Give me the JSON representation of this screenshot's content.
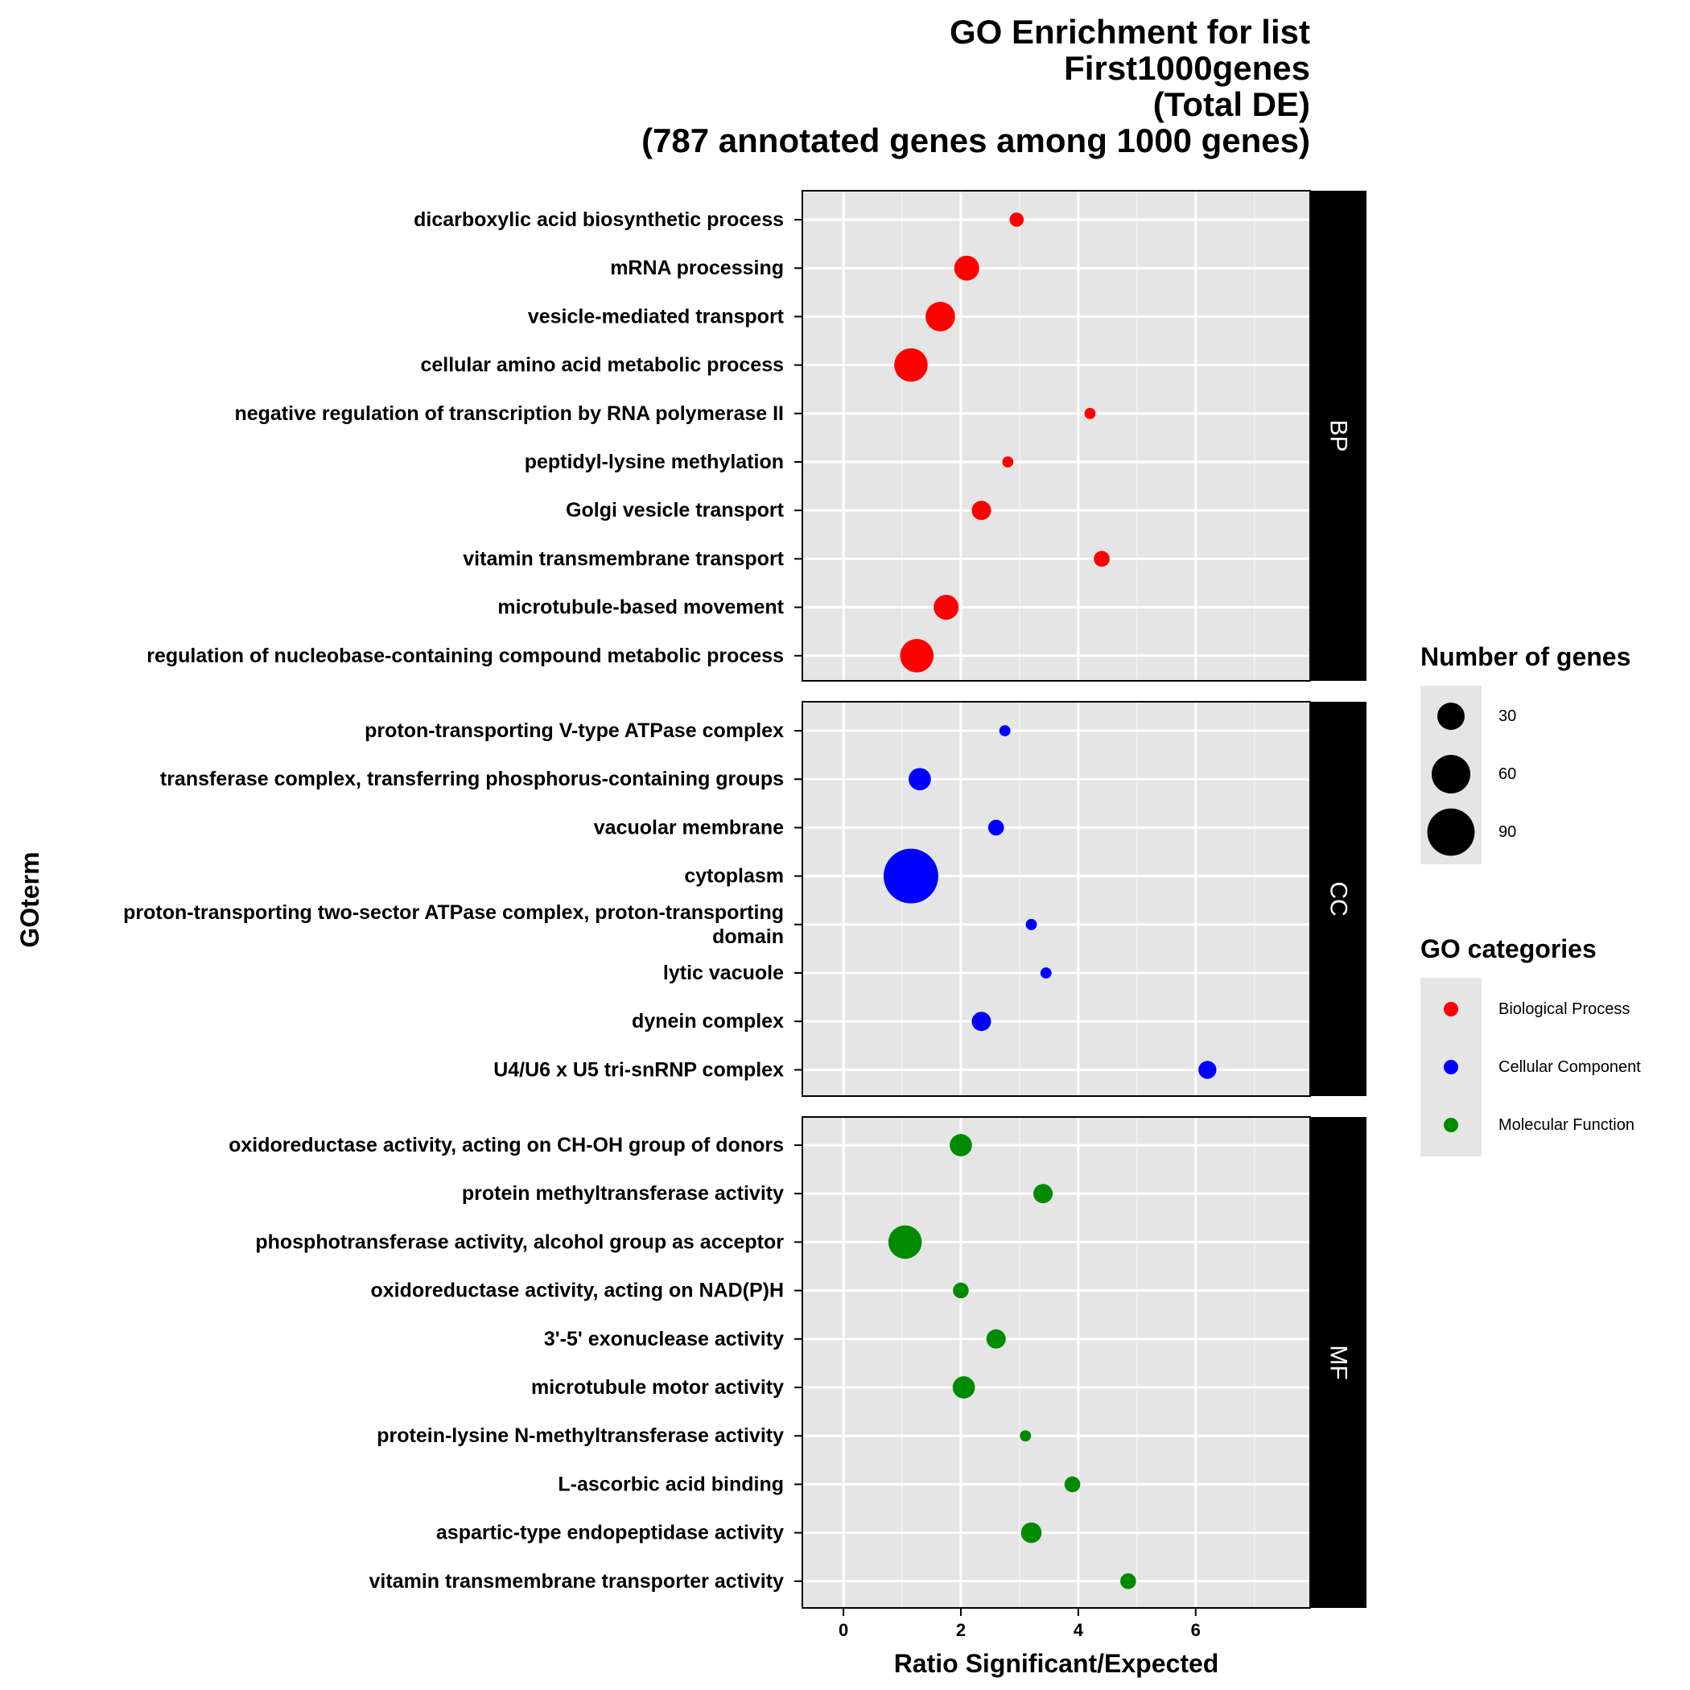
{
  "chart_data": {
    "type": "scatter",
    "title": [
      "GO Enrichment for list",
      "First1000genes",
      "(Total DE)",
      "(787 annotated genes among 1000 genes)"
    ],
    "xlabel": "Ratio Significant/Expected",
    "ylabel": "GOterm",
    "xlim": [
      -0.7,
      7.95
    ],
    "x_ticks": [
      0,
      2,
      4,
      6
    ],
    "x_tick_labels": [
      "0",
      "2",
      "4",
      "6"
    ],
    "grid": true,
    "legend_position": "right",
    "size_legend": {
      "title": "Number of genes",
      "values": [
        30,
        60,
        90
      ],
      "labels": [
        "30",
        "60",
        "90"
      ]
    },
    "color_legend": {
      "title": "GO categories",
      "items": [
        {
          "label": "Biological Process",
          "color": "#ff0000"
        },
        {
          "label": "Cellular Component",
          "color": "#0000ff"
        },
        {
          "label": "Molecular Function",
          "color": "#008b00"
        }
      ]
    },
    "panels": [
      {
        "strip": "BP",
        "color": "#ff0000",
        "terms": [
          {
            "term": "dicarboxylic acid biosynthetic process",
            "ratio": 2.95,
            "genes": 8
          },
          {
            "term": "mRNA processing",
            "ratio": 2.1,
            "genes": 25
          },
          {
            "term": "vesicle-mediated transport",
            "ratio": 1.65,
            "genes": 35
          },
          {
            "term": "cellular amino acid metabolic process",
            "ratio": 1.15,
            "genes": 45
          },
          {
            "term": "negative regulation of transcription by RNA polymerase II",
            "ratio": 4.2,
            "genes": 5
          },
          {
            "term": "peptidyl-lysine methylation",
            "ratio": 2.8,
            "genes": 5
          },
          {
            "term": "Golgi vesicle transport",
            "ratio": 2.35,
            "genes": 15
          },
          {
            "term": "vitamin transmembrane transport",
            "ratio": 4.4,
            "genes": 10
          },
          {
            "term": "microtubule-based movement",
            "ratio": 1.75,
            "genes": 25
          },
          {
            "term": "regulation of nucleobase-containing compound metabolic process",
            "ratio": 1.25,
            "genes": 45
          }
        ]
      },
      {
        "strip": "CC",
        "color": "#0000ff",
        "terms": [
          {
            "term": "proton-transporting V-type ATPase complex",
            "ratio": 2.75,
            "genes": 5
          },
          {
            "term": "transferase complex, transferring phosphorus-containing groups",
            "ratio": 1.3,
            "genes": 20
          },
          {
            "term": "vacuolar membrane",
            "ratio": 2.6,
            "genes": 10
          },
          {
            "term": "cytoplasm",
            "ratio": 1.15,
            "genes": 120
          },
          {
            "term": [
              "proton-transporting two-sector ATPase complex, proton-transporting",
              "domain"
            ],
            "ratio": 3.2,
            "genes": 5
          },
          {
            "term": "lytic vacuole",
            "ratio": 3.45,
            "genes": 5
          },
          {
            "term": "dynein complex",
            "ratio": 2.35,
            "genes": 15
          },
          {
            "term": "U4/U6 x U5 tri-snRNP complex",
            "ratio": 6.2,
            "genes": 13
          }
        ]
      },
      {
        "strip": "MF",
        "color": "#008b00",
        "terms": [
          {
            "term": "oxidoreductase activity, acting on CH-OH group of donors",
            "ratio": 2.0,
            "genes": 20
          },
          {
            "term": "protein methyltransferase activity",
            "ratio": 3.4,
            "genes": 15
          },
          {
            "term": "phosphotransferase activity, alcohol group as acceptor",
            "ratio": 1.05,
            "genes": 45
          },
          {
            "term": "oxidoreductase activity, acting on NAD(P)H",
            "ratio": 2.0,
            "genes": 10
          },
          {
            "term": "3'-5' exonuclease activity",
            "ratio": 2.6,
            "genes": 15
          },
          {
            "term": "microtubule motor activity",
            "ratio": 2.05,
            "genes": 20
          },
          {
            "term": "protein-lysine N-methyltransferase activity",
            "ratio": 3.1,
            "genes": 5
          },
          {
            "term": "L-ascorbic acid binding",
            "ratio": 3.9,
            "genes": 10
          },
          {
            "term": "aspartic-type endopeptidase activity",
            "ratio": 3.2,
            "genes": 17
          },
          {
            "term": "vitamin transmembrane transporter activity",
            "ratio": 4.85,
            "genes": 10
          }
        ]
      }
    ]
  }
}
